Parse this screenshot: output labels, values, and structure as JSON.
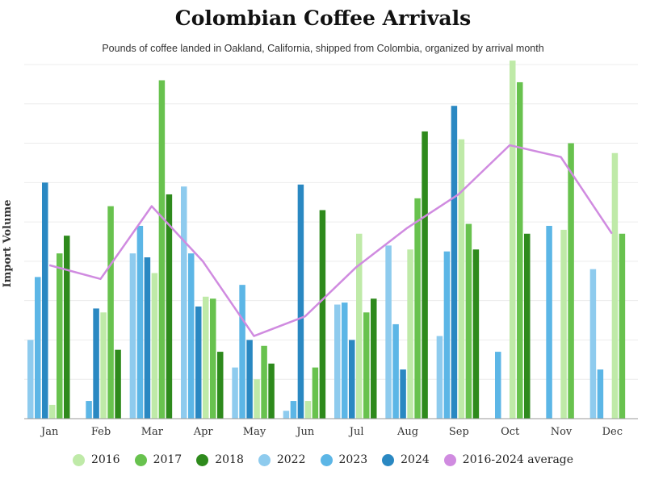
{
  "chart_data": {
    "type": "bar",
    "title": "Colombian Coffee Arrivals",
    "subtitle": "Pounds of coffee landed in Oakland, California, shipped from Colombia, organized by arrival month",
    "ylabel": "Import Volume",
    "xlabel": "",
    "ylim": [
      0,
      90
    ],
    "grid": true,
    "legend_placement": "bottom",
    "categories": [
      "Jan",
      "Feb",
      "Mar",
      "Apr",
      "May",
      "Jun",
      "Jul",
      "Aug",
      "Sep",
      "Oct",
      "Nov",
      "Dec"
    ],
    "series": [
      {
        "name": "2022",
        "color": "#8ecbee",
        "values": [
          20,
          null,
          42,
          59,
          13,
          2,
          29,
          44,
          21,
          null,
          null,
          38
        ]
      },
      {
        "name": "2023",
        "color": "#5cb6e6",
        "values": [
          36,
          4.5,
          49,
          42,
          34,
          4.5,
          29.5,
          24,
          42.5,
          17,
          49,
          12.5
        ]
      },
      {
        "name": "2024",
        "color": "#2a88c2",
        "values": [
          60,
          28,
          41,
          28.5,
          20,
          59.5,
          20,
          12.5,
          79.5,
          null,
          null,
          null
        ]
      },
      {
        "name": "2016",
        "color": "#bfeaa8",
        "values": [
          3.5,
          27,
          37,
          31,
          10,
          4.5,
          47,
          43,
          71,
          91,
          48,
          67.5
        ]
      },
      {
        "name": "2017",
        "color": "#68c24e",
        "values": [
          42,
          54,
          86,
          30.5,
          18.5,
          13,
          27,
          56,
          49.5,
          85.5,
          70,
          47
        ]
      },
      {
        "name": "2018",
        "color": "#2e8a1c",
        "values": [
          46.5,
          17.5,
          57,
          17,
          14,
          53,
          30.5,
          73,
          43,
          47,
          null,
          null
        ]
      }
    ],
    "line": {
      "name": "2016-2024 average",
      "color": "#d08be0",
      "values": [
        39,
        35.5,
        54,
        40,
        21,
        26,
        38.5,
        48.5,
        57,
        69.5,
        66.5,
        47
      ]
    }
  },
  "legend": [
    {
      "label": "2016",
      "color": "#bfeaa8"
    },
    {
      "label": "2017",
      "color": "#68c24e"
    },
    {
      "label": "2018",
      "color": "#2e8a1c"
    },
    {
      "label": "2022",
      "color": "#8ecbee"
    },
    {
      "label": "2023",
      "color": "#5cb6e6"
    },
    {
      "label": "2024",
      "color": "#2a88c2"
    },
    {
      "label": "2016-2024 average",
      "color": "#d08be0"
    }
  ]
}
